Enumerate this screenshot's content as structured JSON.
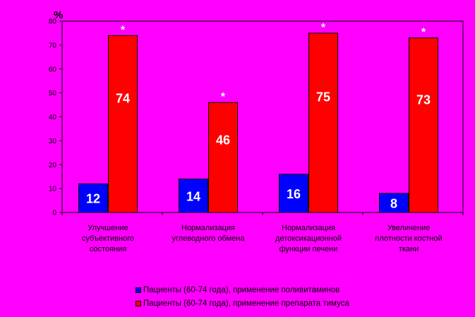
{
  "chart_data": {
    "type": "bar",
    "unit_label": "%",
    "ylim": [
      0,
      80
    ],
    "yticks": [
      "0",
      "10",
      "20",
      "30",
      "40",
      "50",
      "60",
      "70",
      "80"
    ],
    "categories": [
      [
        "Улучшение",
        "субъективного",
        "состояния"
      ],
      [
        "Нормализация",
        "углеводного обмена"
      ],
      [
        "Нормализация",
        "детоксикационной",
        "функции печени"
      ],
      [
        "Увеличение",
        "плотности костной",
        "ткани"
      ]
    ],
    "series": [
      {
        "name": "Пациенты (60-74 года), применение поливитаминов",
        "color": "#0000FF",
        "values": [
          12,
          14,
          16,
          8
        ],
        "labels": [
          "12",
          "14",
          "16",
          "8"
        ]
      },
      {
        "name": "Пациенты (60-74 года), применение препарата тимуса",
        "color": "#FF0000",
        "values": [
          74,
          46,
          75,
          73
        ],
        "labels": [
          "74",
          "46",
          "75",
          "73"
        ]
      }
    ],
    "significance_marker": "*",
    "grid": false,
    "legend_position": "bottom"
  }
}
